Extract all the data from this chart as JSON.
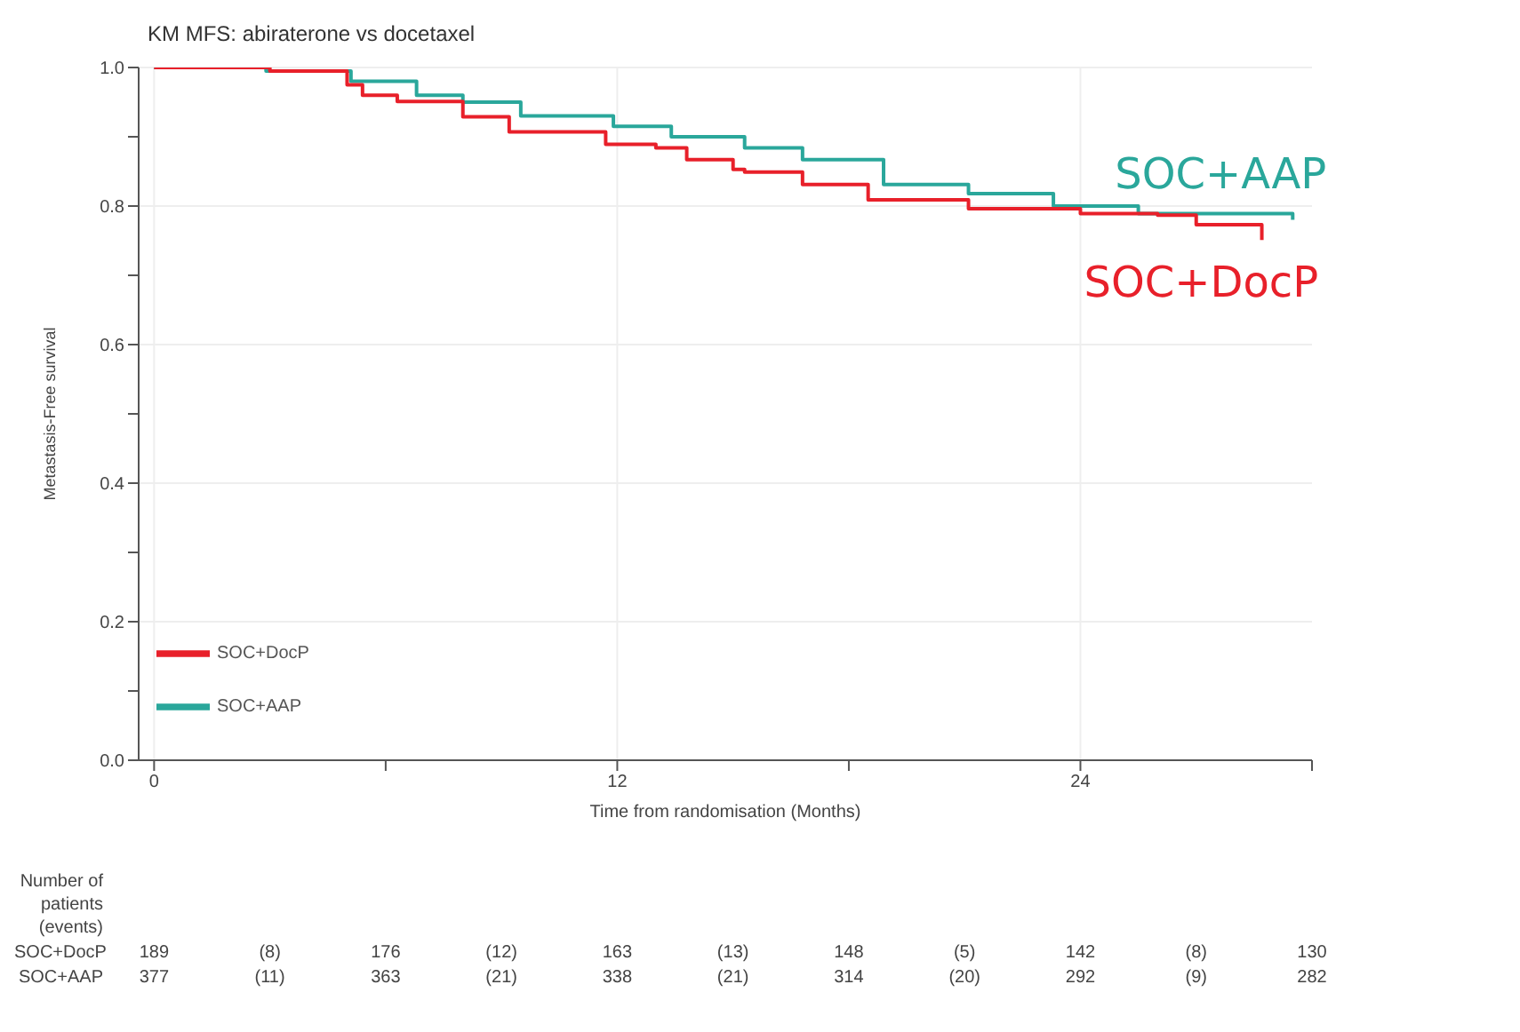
{
  "chart_data": {
    "type": "step",
    "title": "KM MFS: abiraterone vs docetaxel",
    "xlabel": "Time from randomisation (Months)",
    "ylabel": "Metastasis-Free survival",
    "xlim": [
      -0.4,
      30
    ],
    "xticks": [
      0,
      {
        "value": 6,
        "label": null
      },
      12,
      {
        "value": 18,
        "label": null
      },
      24,
      {
        "value": 30,
        "label": null
      }
    ],
    "ylim": [
      0,
      1
    ],
    "yticks": [
      {
        "value": 0,
        "label": "0.0"
      },
      {
        "value": 0.1,
        "label": null
      },
      0.2,
      {
        "value": 0.3,
        "label": null
      },
      0.4,
      {
        "value": 0.5,
        "label": null
      },
      0.6,
      {
        "value": 0.7,
        "label": null
      },
      0.8,
      {
        "value": 0.9,
        "label": null
      },
      {
        "value": 1,
        "label": "1.0"
      }
    ],
    "grid": true,
    "legend": "bottom left",
    "line_style": "solid",
    "marker": "none",
    "series": [
      {
        "name": "SOC+DocP",
        "color": "#e8202a",
        "x": [
          0,
          3,
          4.4,
          5.0,
          5.4,
          6.3,
          7.8,
          8,
          9,
          9.2,
          10.6,
          11.7,
          13,
          13.8,
          15,
          15.3,
          16.8,
          18.5,
          21.1,
          24,
          26,
          27,
          28.7
        ],
        "values": [
          1,
          0.995,
          0.995,
          0.975,
          0.96,
          0.951,
          0.951,
          0.929,
          0.929,
          0.907,
          0.907,
          0.889,
          0.884,
          0.867,
          0.853,
          0.849,
          0.831,
          0.809,
          0.796,
          0.789,
          0.787,
          0.773,
          0.751
        ]
      },
      {
        "name": "SOC+AAP",
        "color": "#2aa79b",
        "x": [
          0,
          2.9,
          4.5,
          5.1,
          6.8,
          8,
          9.5,
          11.4,
          11.9,
          13.4,
          15.3,
          16.8,
          18.9,
          21.1,
          23.3,
          25.5,
          29.5
        ],
        "values": [
          1,
          0.995,
          0.995,
          0.98,
          0.96,
          0.95,
          0.93,
          0.93,
          0.915,
          0.9,
          0.884,
          0.867,
          0.831,
          0.818,
          0.8,
          0.789,
          0.78
        ]
      }
    ],
    "annotations": [
      "Number of\npatients (events)",
      "SOC+DocP",
      "189",
      "(8)",
      "176",
      "(12)",
      "163",
      "(13)",
      "148",
      "(5)",
      "142",
      "(8)",
      "130",
      "SOC+AAP",
      "377",
      "(11)",
      "363",
      "(21)",
      "338",
      "(21)",
      "314",
      "(20)",
      "292",
      "(9)",
      "282"
    ]
  }
}
